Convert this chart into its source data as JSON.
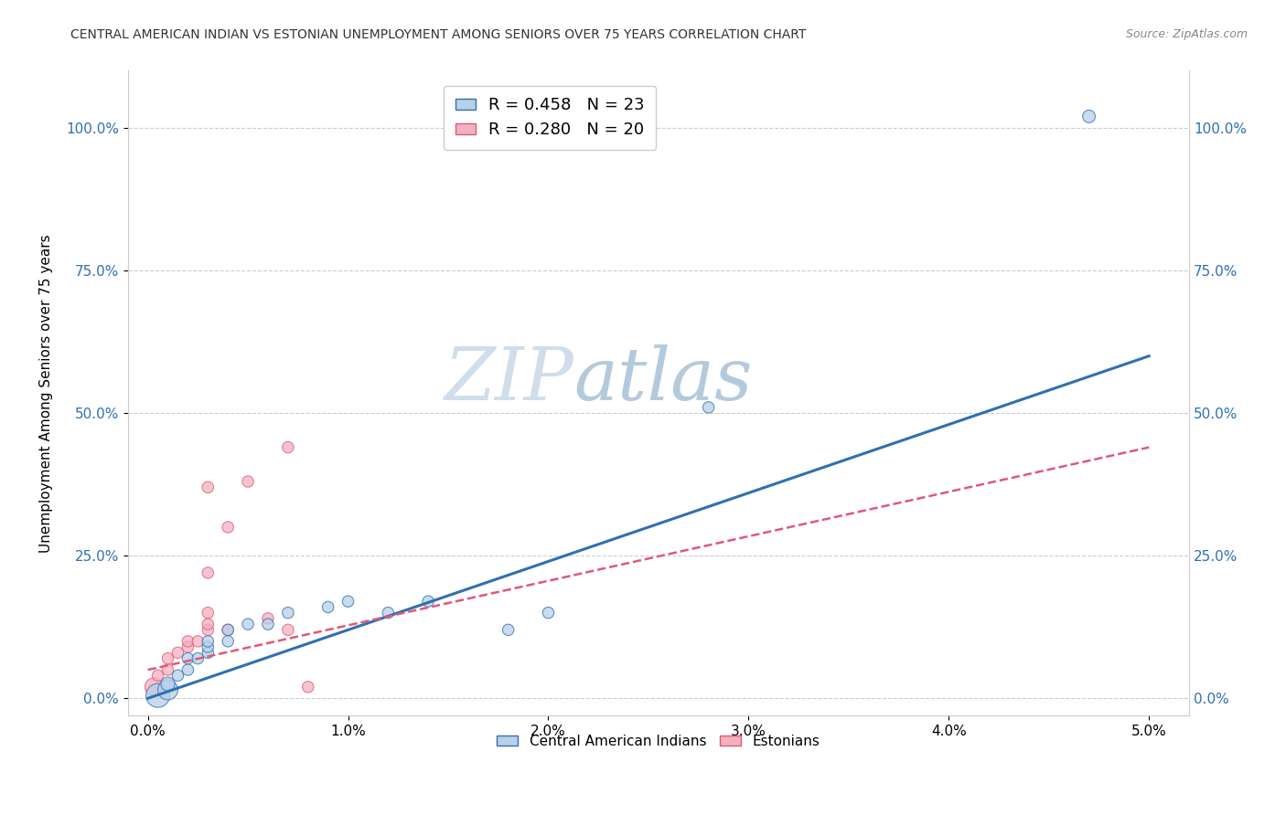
{
  "title": "CENTRAL AMERICAN INDIAN VS ESTONIAN UNEMPLOYMENT AMONG SENIORS OVER 75 YEARS CORRELATION CHART",
  "source": "Source: ZipAtlas.com",
  "xlabel_ticks": [
    "0.0%",
    "1.0%",
    "2.0%",
    "3.0%",
    "4.0%",
    "5.0%"
  ],
  "xlabel_vals": [
    0.0,
    0.01,
    0.02,
    0.03,
    0.04,
    0.05
  ],
  "ylabel_ticks": [
    "0.0%",
    "25.0%",
    "50.0%",
    "75.0%",
    "100.0%"
  ],
  "ylabel_vals": [
    0.0,
    0.25,
    0.5,
    0.75,
    1.0
  ],
  "ylabel_label": "Unemployment Among Seniors over 75 years",
  "legend1_label": "Central American Indians",
  "legend2_label": "Estonians",
  "R_blue": 0.458,
  "N_blue": 23,
  "R_pink": 0.28,
  "N_pink": 20,
  "blue_color": "#b8d0e8",
  "pink_color": "#f2b0c0",
  "blue_line_color": "#3070b0",
  "pink_line_color": "#e05878",
  "watermark_zip": "ZIP",
  "watermark_atlas": "atlas",
  "blue_scatter": [
    [
      0.0005,
      0.005
    ],
    [
      0.001,
      0.015
    ],
    [
      0.001,
      0.025
    ],
    [
      0.0015,
      0.04
    ],
    [
      0.002,
      0.05
    ],
    [
      0.002,
      0.07
    ],
    [
      0.0025,
      0.07
    ],
    [
      0.003,
      0.08
    ],
    [
      0.003,
      0.09
    ],
    [
      0.003,
      0.1
    ],
    [
      0.004,
      0.1
    ],
    [
      0.004,
      0.12
    ],
    [
      0.005,
      0.13
    ],
    [
      0.006,
      0.13
    ],
    [
      0.007,
      0.15
    ],
    [
      0.009,
      0.16
    ],
    [
      0.01,
      0.17
    ],
    [
      0.012,
      0.15
    ],
    [
      0.014,
      0.17
    ],
    [
      0.018,
      0.12
    ],
    [
      0.02,
      0.15
    ],
    [
      0.028,
      0.51
    ],
    [
      0.047,
      1.02
    ]
  ],
  "pink_scatter": [
    [
      0.0003,
      0.02
    ],
    [
      0.0005,
      0.04
    ],
    [
      0.001,
      0.05
    ],
    [
      0.001,
      0.07
    ],
    [
      0.0015,
      0.08
    ],
    [
      0.002,
      0.09
    ],
    [
      0.002,
      0.1
    ],
    [
      0.0025,
      0.1
    ],
    [
      0.003,
      0.12
    ],
    [
      0.003,
      0.13
    ],
    [
      0.003,
      0.15
    ],
    [
      0.003,
      0.22
    ],
    [
      0.003,
      0.37
    ],
    [
      0.004,
      0.12
    ],
    [
      0.004,
      0.3
    ],
    [
      0.005,
      0.38
    ],
    [
      0.006,
      0.14
    ],
    [
      0.007,
      0.12
    ],
    [
      0.007,
      0.44
    ],
    [
      0.008,
      0.02
    ]
  ],
  "blue_marker_sizes": [
    350,
    250,
    120,
    80,
    80,
    80,
    80,
    80,
    80,
    80,
    80,
    80,
    80,
    80,
    80,
    80,
    80,
    80,
    80,
    80,
    80,
    80,
    100
  ],
  "pink_marker_sizes": [
    200,
    80,
    80,
    80,
    80,
    80,
    80,
    80,
    80,
    80,
    80,
    80,
    80,
    80,
    80,
    80,
    80,
    80,
    80,
    80
  ],
  "blue_line_x": [
    0.0,
    0.05
  ],
  "blue_line_y": [
    0.0,
    0.6
  ],
  "pink_line_x": [
    0.0,
    0.05
  ],
  "pink_line_y": [
    0.05,
    0.44
  ],
  "xlim": [
    -0.001,
    0.052
  ],
  "ylim": [
    -0.03,
    1.1
  ]
}
